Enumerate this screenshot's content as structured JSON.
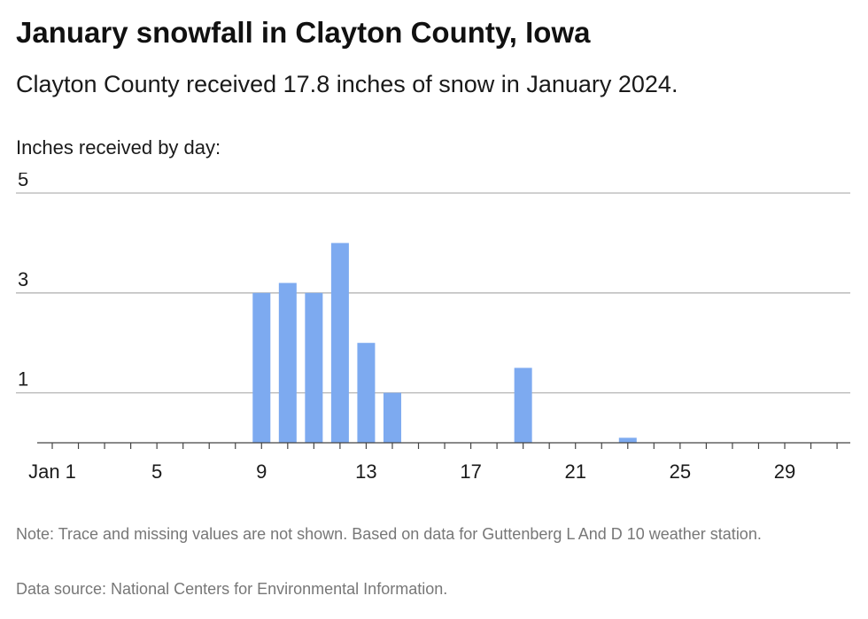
{
  "header": {
    "title": "January snowfall in Clayton County, Iowa",
    "subtitle": "Clayton County received 17.8 inches of snow in January 2024."
  },
  "footer": {
    "note": "Note: Trace and missing values are not shown. Based on data for Guttenberg L And D 10 weather station.",
    "source": "Data source: National Centers for Environmental Information."
  },
  "chart_data": {
    "type": "bar",
    "title": "January snowfall in Clayton County, Iowa",
    "subtitle": "Clayton County received 17.8 inches of snow in January 2024.",
    "ylabel": "Inches received by day:",
    "xlabel": "",
    "ylim": [
      0,
      5
    ],
    "yticks": [
      1,
      3,
      5
    ],
    "xlim": [
      1,
      31
    ],
    "xticks": [
      {
        "day": 1,
        "label": "Jan 1"
      },
      {
        "day": 5,
        "label": "5"
      },
      {
        "day": 9,
        "label": "9"
      },
      {
        "day": 13,
        "label": "13"
      },
      {
        "day": 17,
        "label": "17"
      },
      {
        "day": 21,
        "label": "21"
      },
      {
        "day": 25,
        "label": "25"
      },
      {
        "day": 29,
        "label": "29"
      }
    ],
    "grid": true,
    "bar_color": "#7daaf0",
    "x": [
      9,
      10,
      11,
      12,
      13,
      14,
      19,
      23
    ],
    "values": [
      3.0,
      3.2,
      3.0,
      4.0,
      2.0,
      1.0,
      1.5,
      0.1
    ]
  }
}
